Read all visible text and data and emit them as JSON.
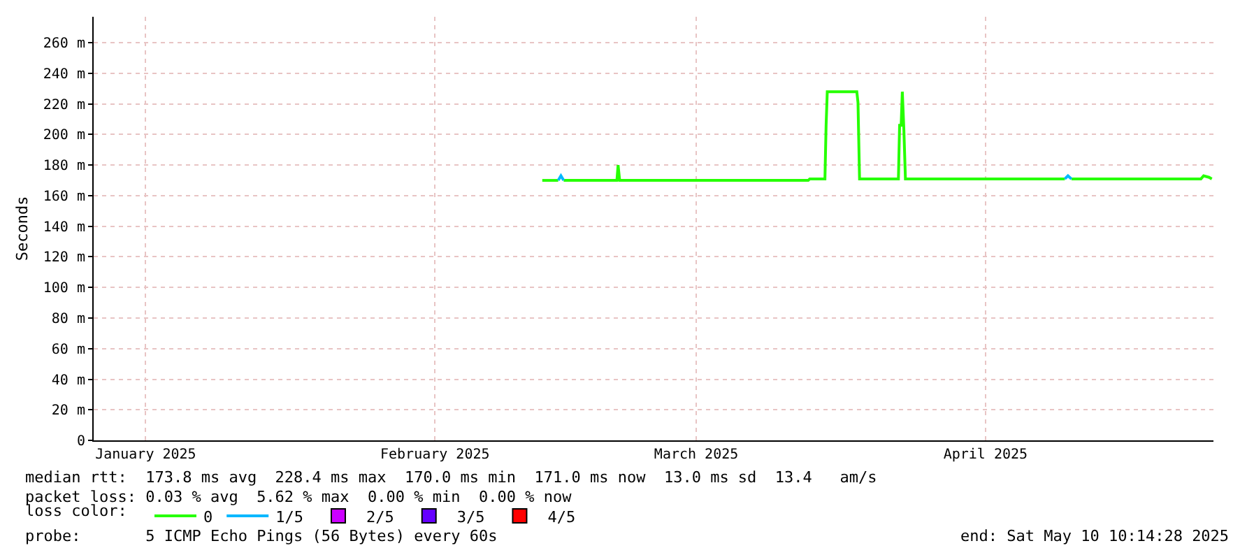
{
  "chart_data": {
    "type": "line",
    "ylabel": "Seconds",
    "legend_title": "loss color:",
    "legend": "bottom",
    "grid": true,
    "marker": "none",
    "line_style": "solid",
    "xlim": [
      "2025-01-10T10:14",
      "2025-05-10T10:14"
    ],
    "xticks": [
      {
        "value": "2025-01-16",
        "label": "January 2025"
      },
      {
        "value": "2025-02-16",
        "label": "February 2025"
      },
      {
        "value": "2025-03-16",
        "label": "March 2025"
      },
      {
        "value": "2025-04-16",
        "label": "April 2025"
      }
    ],
    "ylim": [
      0,
      277
    ],
    "yticks": [
      0,
      {
        "value": 20,
        "label": "20 m"
      },
      {
        "value": 40,
        "label": "40 m"
      },
      {
        "value": 60,
        "label": "60 m"
      },
      {
        "value": 80,
        "label": "80 m"
      },
      {
        "value": 100,
        "label": "100 m"
      },
      {
        "value": 120,
        "label": "120 m"
      },
      {
        "value": 140,
        "label": "140 m"
      },
      {
        "value": 160,
        "label": "160 m"
      },
      {
        "value": 180,
        "label": "180 m"
      },
      {
        "value": 200,
        "label": "200 m"
      },
      {
        "value": 220,
        "label": "220 m"
      },
      {
        "value": 240,
        "label": "240 m"
      },
      {
        "value": 260,
        "label": "260 m"
      }
    ],
    "series": [
      {
        "name": "0",
        "color": "#26ff00",
        "x": [
          "2025-02-27T12:00",
          "2025-03-01T05:00",
          "2025-03-01T12:00",
          "2025-03-01T19:00",
          "2025-03-07T12:00",
          "2025-03-07T15:00",
          "2025-03-07T19:00",
          "2025-03-28T00:00",
          "2025-03-28T04:00",
          "2025-03-29T19:00",
          "2025-03-29T22:00",
          "2025-03-30T01:00",
          "2025-04-02T05:00",
          "2025-04-02T08:00",
          "2025-04-02T12:00",
          "2025-04-06T16:00",
          "2025-04-06T19:00",
          "2025-04-06T23:00",
          "2025-04-07T02:00",
          "2025-04-07T06:00",
          "2025-04-07T10:00",
          "2025-04-24T12:00",
          "2025-04-24T20:00",
          "2025-04-25T05:00",
          "2025-05-09T02:00",
          "2025-05-09T09:00",
          "2025-05-09T23:00",
          "2025-05-10T06:00"
        ],
        "values": [
          170,
          170,
          null,
          170,
          170,
          180,
          170,
          170,
          171,
          171,
          206,
          228,
          228,
          221,
          171,
          171,
          206,
          206,
          228,
          203,
          171,
          171,
          null,
          171,
          171,
          173,
          172,
          171
        ]
      },
      {
        "name": "1/5",
        "color": "#00b8ff",
        "x": [
          "2025-03-01T05:00",
          "2025-03-01T12:00",
          "2025-03-01T19:00",
          "2025-04-10T00:00",
          "2025-04-24T12:00",
          "2025-04-24T20:00",
          "2025-04-25T05:00"
        ],
        "values": [
          170,
          173,
          170,
          null,
          171,
          173,
          171
        ]
      },
      {
        "name": "2/5",
        "color": "#cc00ff"
      },
      {
        "name": "3/5",
        "color": "#6600ff"
      },
      {
        "name": "4/5",
        "color": "#ff0000"
      }
    ],
    "annotations": [
      "median rtt:  173.8 ms avg  228.4 ms max  170.0 ms min  171.0 ms now  13.0 ms sd  13.4   am/s",
      "packet loss: 0.03 % avg  5.62 % max  0.00 % min  0.00 % now",
      "probe:       5 ICMP Echo Pings (56 Bytes) every 60s",
      "end: Sat May 10 10:14:28 2025"
    ]
  }
}
